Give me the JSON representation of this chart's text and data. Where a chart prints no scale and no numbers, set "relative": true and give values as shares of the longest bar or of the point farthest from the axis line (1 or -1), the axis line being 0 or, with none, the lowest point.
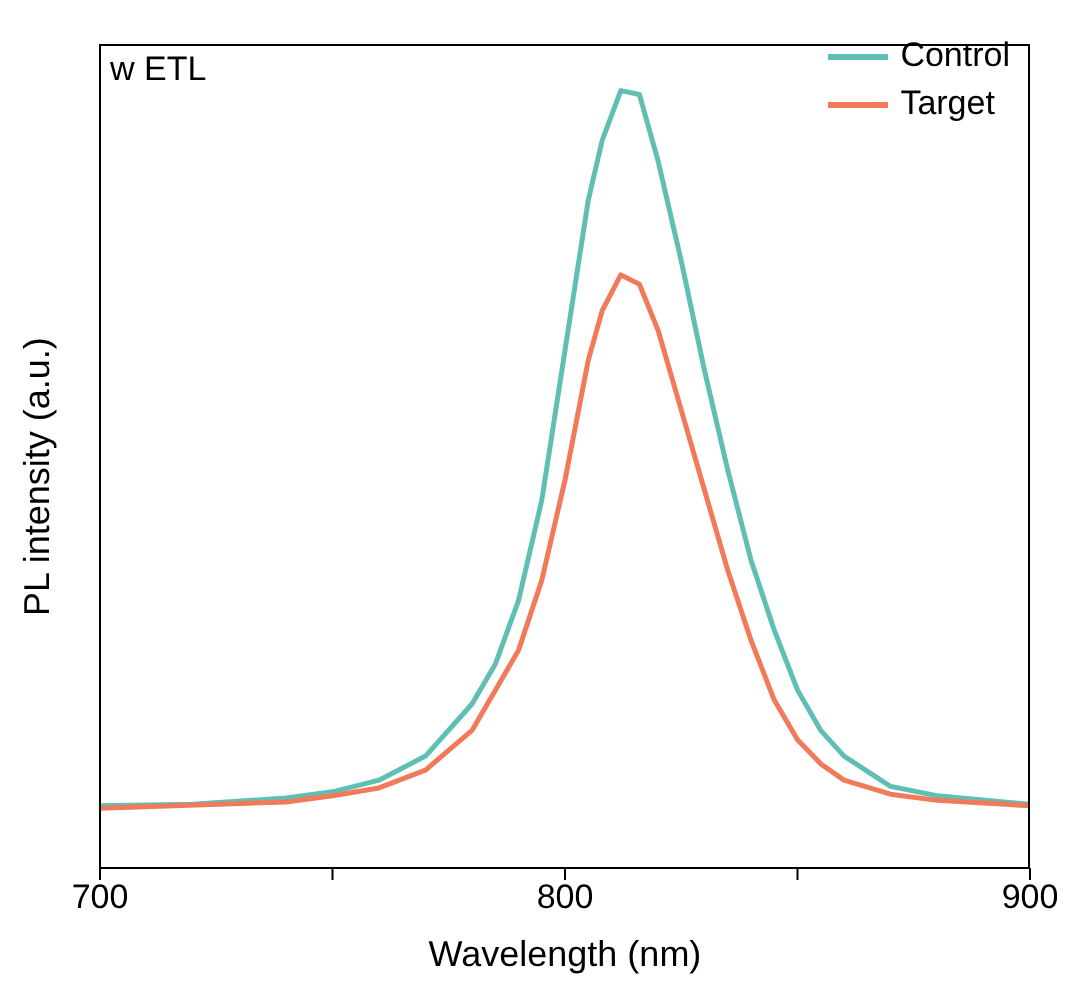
{
  "chart_data": {
    "type": "line",
    "xlabel": "Wavelength (nm)",
    "ylabel": "PL intensity (a.u.)",
    "annotations": [
      "w ETL"
    ],
    "relative": true,
    "xlim": [
      700,
      900
    ],
    "xticks": [
      700,
      {
        "value": 750,
        "label": null
      },
      800,
      {
        "value": 850,
        "label": null
      },
      900
    ],
    "legend": "top right",
    "marker": "none",
    "line_style": "solid",
    "series": [
      {
        "name": "Control",
        "color": "#5fbfb5",
        "x": [
          700,
          720,
          740,
          750,
          760,
          770,
          780,
          785,
          790,
          795,
          800,
          805,
          808,
          812,
          816,
          820,
          825,
          830,
          835,
          840,
          845,
          850,
          855,
          860,
          870,
          880,
          900
        ],
        "values": [
          0.08,
          0.082,
          0.09,
          0.098,
          0.113,
          0.144,
          0.211,
          0.262,
          0.344,
          0.473,
          0.666,
          0.859,
          0.936,
          1,
          0.995,
          0.91,
          0.781,
          0.64,
          0.512,
          0.396,
          0.306,
          0.229,
          0.177,
          0.144,
          0.105,
          0.093,
          0.082
        ]
      },
      {
        "name": "Target",
        "color": "#f07a5a",
        "x": [
          700,
          740,
          750,
          760,
          770,
          780,
          790,
          795,
          800,
          805,
          808,
          812,
          816,
          820,
          825,
          830,
          835,
          840,
          845,
          850,
          855,
          860,
          870,
          880,
          900
        ],
        "values": [
          0.077,
          0.085,
          0.093,
          0.103,
          0.126,
          0.177,
          0.28,
          0.37,
          0.499,
          0.653,
          0.717,
          0.763,
          0.751,
          0.692,
          0.589,
          0.486,
          0.383,
          0.293,
          0.216,
          0.165,
          0.134,
          0.113,
          0.095,
          0.087,
          0.08
        ]
      }
    ]
  }
}
